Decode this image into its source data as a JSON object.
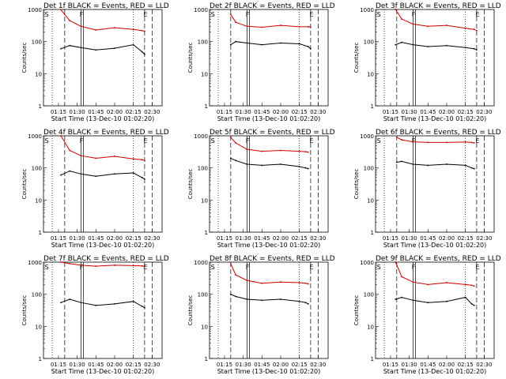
{
  "shared": {
    "title_suffix": "BLACK = Events, RED = LLD",
    "xlabel": "Start Time (13-Dec-10 01:02:20)",
    "ylabel": "Counts/sec",
    "x_ticks": [
      "01:15",
      "01:30",
      "01:45",
      "02:00",
      "02:15",
      "02:30"
    ],
    "y_ticks": [
      "1",
      "10",
      "100",
      "1000"
    ],
    "markers": {
      "S": "S",
      "F": "F",
      "E": "E"
    },
    "colors": {
      "events": "#000000",
      "lld": "#cc0000"
    }
  },
  "chart_data": [
    {
      "type": "line",
      "title": "Det 1f BLACK = Events, RED = LLD",
      "xlabel": "Start Time (13-Dec-10 01:02:20)",
      "ylabel": "Counts/sec",
      "yscale": "log",
      "ylim": [
        1,
        1000
      ],
      "xlim": [
        "01:03",
        "02:38"
      ],
      "x": [
        "01:17",
        "01:24",
        "01:33",
        "01:45",
        "02:00",
        "02:15",
        "02:22",
        "02:24"
      ],
      "series": [
        {
          "name": "RED = LLD",
          "values": [
            980,
            450,
            300,
            230,
            270,
            240,
            220,
            210
          ]
        },
        {
          "name": "BLACK = Events",
          "values": [
            60,
            75,
            65,
            55,
            62,
            80,
            48,
            40
          ]
        }
      ]
    },
    {
      "type": "line",
      "title": "Det 2f BLACK = Events, RED = LLD",
      "xlabel": "Start Time (13-Dec-10 01:02:20)",
      "ylabel": "Counts/sec",
      "yscale": "log",
      "ylim": [
        1,
        1000
      ],
      "xlim": [
        "01:03",
        "02:38"
      ],
      "x": [
        "01:20",
        "01:24",
        "01:33",
        "01:45",
        "02:00",
        "02:15",
        "02:22",
        "02:24"
      ],
      "series": [
        {
          "name": "RED = LLD",
          "values": [
            700,
            400,
            300,
            280,
            320,
            290,
            290,
            280
          ]
        },
        {
          "name": "BLACK = Events",
          "values": [
            80,
            100,
            90,
            80,
            90,
            85,
            70,
            60
          ]
        }
      ]
    },
    {
      "type": "line",
      "title": "Det 3f BLACK = Events, RED = LLD",
      "xlabel": "Start Time (13-Dec-10 01:02:20)",
      "ylabel": "Counts/sec",
      "yscale": "log",
      "ylim": [
        1,
        1000
      ],
      "xlim": [
        "01:03",
        "02:38"
      ],
      "x": [
        "01:19",
        "01:24",
        "01:33",
        "01:45",
        "02:00",
        "02:15",
        "02:22",
        "02:24"
      ],
      "series": [
        {
          "name": "RED = LLD",
          "values": [
            1000,
            500,
            350,
            300,
            320,
            260,
            240,
            220
          ]
        },
        {
          "name": "BLACK = Events",
          "values": [
            80,
            95,
            80,
            70,
            75,
            65,
            60,
            55
          ]
        }
      ]
    },
    {
      "type": "line",
      "title": "Det 4f BLACK = Events, RED = LLD",
      "xlabel": "Start Time (13-Dec-10 01:02:20)",
      "ylabel": "Counts/sec",
      "yscale": "log",
      "ylim": [
        1,
        1000
      ],
      "xlim": [
        "01:03",
        "02:38"
      ],
      "x": [
        "01:17",
        "01:24",
        "01:33",
        "01:45",
        "02:00",
        "02:15",
        "02:22",
        "02:24"
      ],
      "series": [
        {
          "name": "RED = LLD",
          "values": [
            1000,
            350,
            240,
            200,
            230,
            190,
            180,
            170
          ]
        },
        {
          "name": "BLACK = Events",
          "values": [
            60,
            80,
            65,
            55,
            65,
            70,
            50,
            45
          ]
        }
      ]
    },
    {
      "type": "line",
      "title": "Det 5f BLACK = Events, RED = LLD",
      "xlabel": "Start Time (13-Dec-10 01:02:20)",
      "ylabel": "Counts/sec",
      "yscale": "log",
      "ylim": [
        1,
        1000
      ],
      "xlim": [
        "01:03",
        "02:38"
      ],
      "x": [
        "01:20",
        "01:24",
        "01:33",
        "01:45",
        "02:00",
        "02:15",
        "02:20",
        "02:22"
      ],
      "series": [
        {
          "name": "RED = LLD",
          "values": [
            900,
            600,
            380,
            330,
            350,
            330,
            320,
            310
          ]
        },
        {
          "name": "BLACK = Events",
          "values": [
            200,
            170,
            130,
            120,
            130,
            110,
            100,
            95
          ]
        }
      ]
    },
    {
      "type": "line",
      "title": "Det 6f BLACK = Events, RED = LLD",
      "xlabel": "Start Time (13-Dec-10 01:02:20)",
      "ylabel": "Counts/sec",
      "yscale": "log",
      "ylim": [
        1,
        1000
      ],
      "xlim": [
        "01:03",
        "02:38"
      ],
      "x": [
        "01:20",
        "01:24",
        "01:33",
        "01:45",
        "02:00",
        "02:15",
        "02:20",
        "02:22"
      ],
      "series": [
        {
          "name": "RED = LLD",
          "values": [
            900,
            750,
            650,
            620,
            620,
            640,
            620,
            600
          ]
        },
        {
          "name": "BLACK = Events",
          "values": [
            150,
            160,
            130,
            120,
            130,
            120,
            100,
            95
          ]
        }
      ]
    },
    {
      "type": "line",
      "title": "Det 7f BLACK = Events, RED = LLD",
      "xlabel": "Start Time (13-Dec-10 01:02:20)",
      "ylabel": "Counts/sec",
      "yscale": "log",
      "ylim": [
        1,
        1000
      ],
      "xlim": [
        "01:03",
        "02:38"
      ],
      "x": [
        "01:17",
        "01:24",
        "01:33",
        "01:45",
        "02:00",
        "02:15",
        "02:22",
        "02:24"
      ],
      "series": [
        {
          "name": "RED = LLD",
          "values": [
            1000,
            900,
            800,
            750,
            800,
            780,
            760,
            750
          ]
        },
        {
          "name": "BLACK = Events",
          "values": [
            55,
            70,
            55,
            45,
            50,
            60,
            42,
            38
          ]
        }
      ]
    },
    {
      "type": "line",
      "title": "Det 8f BLACK = Events, RED = LLD",
      "xlabel": "Start Time (13-Dec-10 01:02:20)",
      "ylabel": "Counts/sec",
      "yscale": "log",
      "ylim": [
        1,
        1000
      ],
      "xlim": [
        "01:03",
        "02:38"
      ],
      "x": [
        "01:20",
        "01:24",
        "01:33",
        "01:45",
        "02:00",
        "02:15",
        "02:20",
        "02:22"
      ],
      "series": [
        {
          "name": "RED = LLD",
          "values": [
            900,
            400,
            270,
            220,
            240,
            230,
            220,
            210
          ]
        },
        {
          "name": "BLACK = Events",
          "values": [
            100,
            85,
            70,
            65,
            70,
            60,
            55,
            50
          ]
        }
      ]
    },
    {
      "type": "line",
      "title": "Det 9f BLACK = Events, RED = LLD",
      "xlabel": "Start Time (13-Dec-10 01:02:20)",
      "ylabel": "Counts/sec",
      "yscale": "log",
      "ylim": [
        1,
        1000
      ],
      "xlim": [
        "01:03",
        "02:38"
      ],
      "x": [
        "01:19",
        "01:24",
        "01:33",
        "01:45",
        "02:00",
        "02:15",
        "02:20",
        "02:22"
      ],
      "series": [
        {
          "name": "RED = LLD",
          "values": [
            1000,
            350,
            240,
            200,
            230,
            200,
            190,
            180
          ]
        },
        {
          "name": "BLACK = Events",
          "values": [
            70,
            80,
            65,
            55,
            60,
            80,
            50,
            45
          ]
        }
      ]
    }
  ]
}
